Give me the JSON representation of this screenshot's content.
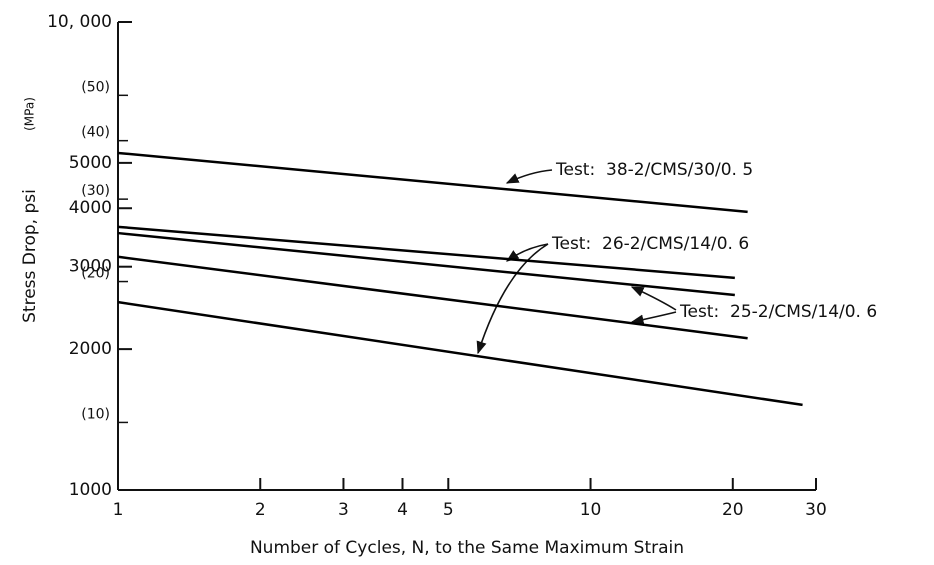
{
  "chart_data": {
    "type": "line",
    "xlabel": "Number of Cycles, N, to the Same Maximum Strain",
    "ylabel": "Stress Drop, psi",
    "y2label": "(MPa)",
    "xscale": "log",
    "yscale": "log",
    "xlim": [
      1,
      30
    ],
    "ylim": [
      1000,
      10000
    ],
    "xticks": [
      1,
      2,
      3,
      4,
      5,
      10,
      20,
      30
    ],
    "yticks": [
      1000,
      2000,
      3000,
      4000,
      5000,
      {
        "value": 10000,
        "label": "10, 000"
      }
    ],
    "y2lim": [
      6.895,
      68.95
    ],
    "y2ticks": [
      {
        "value": 10,
        "label": "(10)"
      },
      {
        "value": 20,
        "label": "(20)"
      },
      {
        "value": 30,
        "label": "(30)"
      },
      {
        "value": 40,
        "label": "(40)"
      },
      {
        "value": 50,
        "label": "(50)"
      }
    ],
    "series": [
      {
        "color": "#000000",
        "x": [
          1,
          21.5
        ],
        "values": [
          5250,
          3930
        ]
      },
      {
        "color": "#000000",
        "x": [
          1,
          20.2
        ],
        "values": [
          3650,
          2840
        ]
      },
      {
        "color": "#000000",
        "x": [
          1,
          20.2
        ],
        "values": [
          3540,
          2610
        ]
      },
      {
        "color": "#000000",
        "x": [
          1,
          21.5
        ],
        "values": [
          3150,
          2110
        ]
      },
      {
        "color": "#000000",
        "x": [
          1,
          28.1
        ],
        "values": [
          2520,
          1520
        ]
      }
    ],
    "annotations": [
      "Test:  38-2/CMS/30/0. 5",
      "Test:  26-2/CMS/14/0. 6",
      "Test:  25-2/CMS/14/0. 6"
    ]
  }
}
